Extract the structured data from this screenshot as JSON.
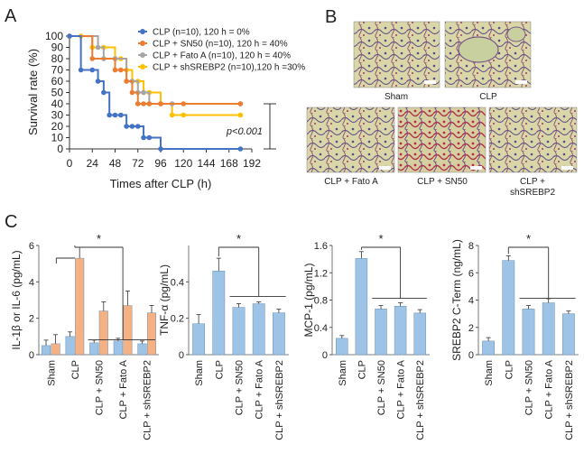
{
  "panels": {
    "a": "A",
    "b": "B",
    "c": "C"
  },
  "survival": {
    "type": "line",
    "xlabel": "Times after CLP (h)",
    "ylabel": "Survival rate (%)",
    "xticks": [
      0,
      24,
      48,
      72,
      96,
      120,
      144,
      168,
      192
    ],
    "yticks": [
      0,
      10,
      20,
      30,
      40,
      50,
      60,
      70,
      80,
      90,
      100
    ],
    "xlim": [
      0,
      192
    ],
    "ylim": [
      0,
      100
    ],
    "legend_position": "top-right",
    "pvalue": "p<0.001",
    "series": [
      {
        "name": "CLP (n=10), 120 h = 0%",
        "color": "#4472c4",
        "x": [
          0,
          12,
          24,
          30,
          36,
          42,
          48,
          54,
          60,
          66,
          72,
          78,
          84,
          96,
          180
        ],
        "y": [
          100,
          70,
          70,
          60,
          50,
          30,
          30,
          30,
          20,
          20,
          20,
          10,
          10,
          0,
          0
        ]
      },
      {
        "name": "CLP + SN50 (n=10), 120 h = 40%",
        "color": "#ed7d31",
        "x": [
          0,
          24,
          48,
          54,
          60,
          66,
          72,
          78,
          84,
          96,
          120,
          180
        ],
        "y": [
          100,
          80,
          70,
          70,
          60,
          50,
          40,
          40,
          40,
          40,
          40,
          40
        ]
      },
      {
        "name": "CLP + Fato A (n=10), 120 h = 40%",
        "color": "#a5a5a5",
        "x": [
          0,
          30,
          36,
          48,
          60,
          66,
          72,
          78,
          84,
          96,
          108,
          180
        ],
        "y": [
          100,
          90,
          80,
          80,
          60,
          60,
          50,
          50,
          40,
          40,
          40,
          40
        ]
      },
      {
        "name": "CLP + shSREBP2 (n=10),120 h =30%",
        "color": "#ffc000",
        "x": [
          0,
          12,
          24,
          36,
          48,
          54,
          60,
          66,
          72,
          78,
          84,
          96,
          108,
          120,
          180
        ],
        "y": [
          100,
          100,
          90,
          90,
          80,
          80,
          70,
          60,
          60,
          50,
          50,
          40,
          30,
          30,
          30
        ]
      }
    ]
  },
  "histology": {
    "captions": [
      "Sham",
      "CLP",
      "CLP + Fato A",
      "CLP + SN50",
      "CLP +",
      "shSREBP2"
    ]
  },
  "chart_data": [
    {
      "type": "bar",
      "ylabel": "IL-1β or IL-6 (pg/mL)",
      "categories": [
        "Sham",
        "CLP",
        "CLP + SN50",
        "CLP + Fato A",
        "CLP + shSREBP2"
      ],
      "ylim": [
        0,
        6
      ],
      "yticks": [
        0,
        2,
        4,
        6
      ],
      "significance": "*",
      "series": [
        {
          "color": "#9dc3e6",
          "values": [
            0.5,
            1.0,
            0.65,
            0.75,
            0.6
          ],
          "errors": [
            0.3,
            0.25,
            0.15,
            0.15,
            0.15
          ]
        },
        {
          "color": "#f4b183",
          "values": [
            0.6,
            5.3,
            2.4,
            2.7,
            2.3
          ],
          "errors": [
            0.5,
            0.6,
            0.5,
            0.8,
            0.4
          ]
        }
      ]
    },
    {
      "type": "bar",
      "ylabel": "TNF-α (pg/mL)",
      "categories": [
        "Sham",
        "CLP",
        "CLP + SN50",
        "CLP + Fato A",
        "CLP + shSREBP2"
      ],
      "ylim": [
        0,
        0.6
      ],
      "yticks": [
        0,
        0.2,
        0.4
      ],
      "significance": "*",
      "series": [
        {
          "color": "#9dc3e6",
          "values": [
            0.17,
            0.46,
            0.26,
            0.28,
            0.23
          ],
          "errors": [
            0.05,
            0.07,
            0.02,
            0.01,
            0.02
          ]
        }
      ]
    },
    {
      "type": "bar",
      "ylabel": "MCP-1 (pg/mL)",
      "categories": [
        "Sham",
        "CLP",
        "CLP + SN50",
        "CLP + Fato A",
        "CLP + shSREBP2"
      ],
      "ylim": [
        0,
        1.6
      ],
      "yticks": [
        0,
        0.4,
        0.8,
        1.2,
        1.6
      ],
      "significance": "*",
      "series": [
        {
          "color": "#9dc3e6",
          "values": [
            0.24,
            1.41,
            0.67,
            0.71,
            0.61
          ],
          "errors": [
            0.04,
            0.1,
            0.05,
            0.05,
            0.05
          ]
        }
      ]
    },
    {
      "type": "bar",
      "ylabel": "SREBP2 C-Term (ng/mL)",
      "categories": [
        "Sham",
        "CLP",
        "CLP + SN50",
        "CLP + Fato A",
        "CLP + shSREBP2"
      ],
      "ylim": [
        0,
        8
      ],
      "yticks": [
        0,
        2,
        4,
        6,
        8
      ],
      "significance": "*",
      "series": [
        {
          "color": "#9dc3e6",
          "values": [
            1.0,
            6.9,
            3.35,
            3.8,
            3.0
          ],
          "errors": [
            0.25,
            0.35,
            0.25,
            0.3,
            0.2
          ]
        }
      ]
    }
  ]
}
